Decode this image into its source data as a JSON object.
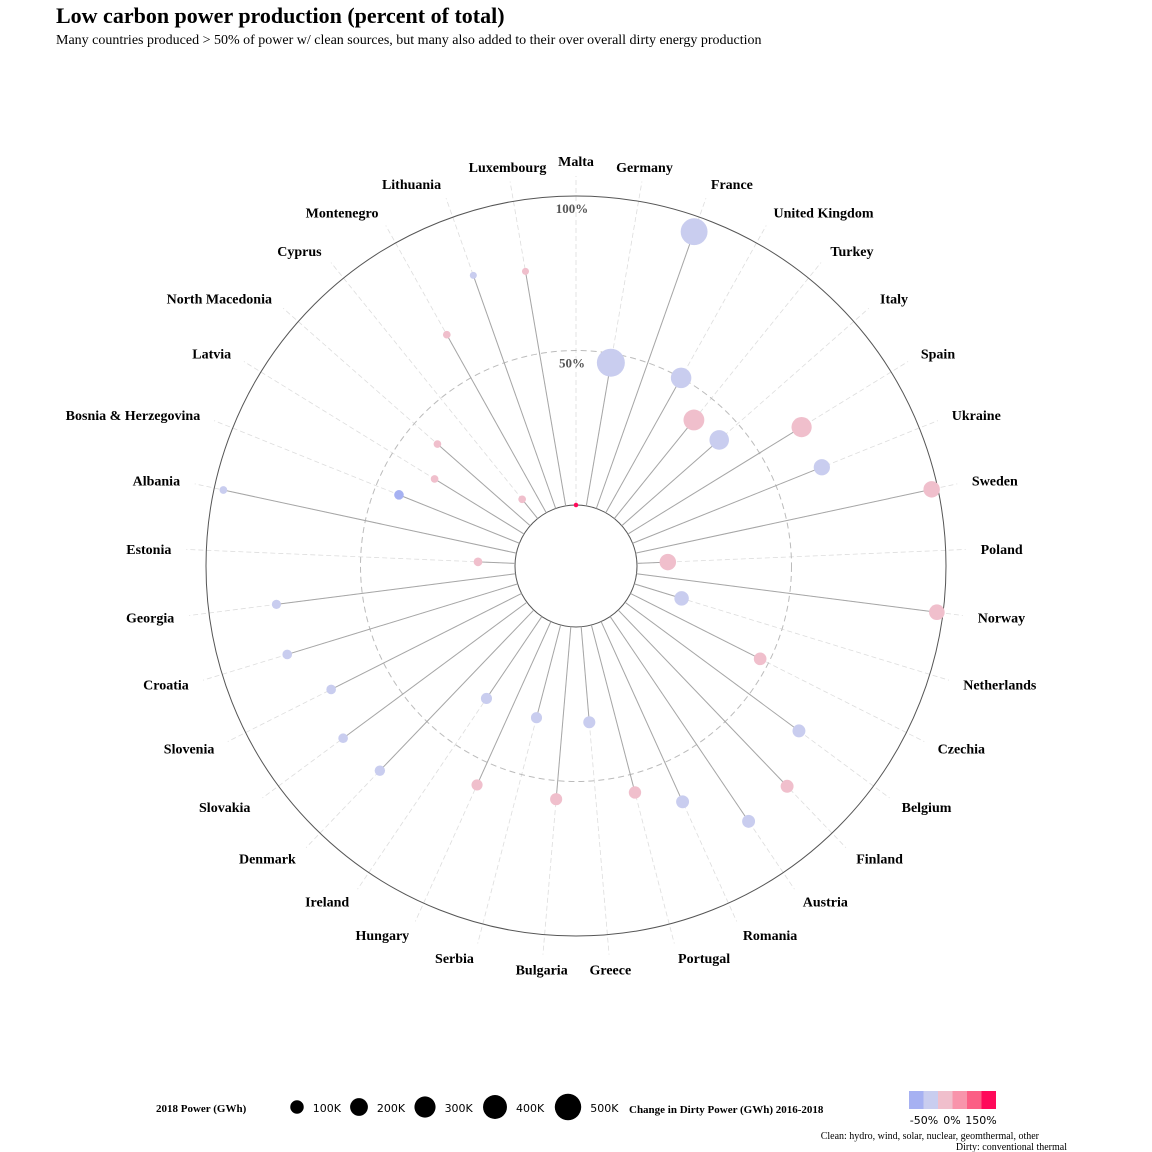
{
  "title": "Low carbon power production (percent of total)",
  "subtitle": "Many countries produced > 50% of power w/ clean sources, but many also added to their over overall dirty energy production",
  "caption": [
    "Clean: hydro, wind, solar, nuclear, geomthermal, other",
    "Dirty: conventional thermal"
  ],
  "colors": {
    "decrease_strong": "#a6b1f2",
    "decrease": "#c9cdef",
    "increase": "#f0bfcc",
    "increase_mid": "#f894ab",
    "increase_strong": "#fb5f85",
    "increase_max": "#ff0a5a",
    "spoke": "#a6a6a6",
    "grid": "#dddddd"
  },
  "chart_data": {
    "type": "polar-lollipop",
    "r_scale": "percent of total",
    "rlim": [
      0,
      100
    ],
    "ring_labels": [
      "100%",
      "50%"
    ],
    "ring_values": [
      100,
      50
    ],
    "size_legend": {
      "title": "2018 Power (GWh)",
      "values": [
        100000,
        200000,
        300000,
        400000,
        500000
      ],
      "labels": [
        "100K",
        "200K",
        "300K",
        "400K",
        "500K"
      ]
    },
    "color_legend": {
      "title": "Change in Dirty Power (GWh) 2016-2018",
      "labels": [
        "-50%",
        "0%",
        "150%"
      ]
    },
    "points": [
      {
        "country": "Malta",
        "clean_pct": 0,
        "power_gwh": 2000,
        "color": "increase_max"
      },
      {
        "country": "Germany",
        "clean_pct": 47,
        "power_gwh": 570000,
        "color": "decrease"
      },
      {
        "country": "France",
        "clean_pct": 95,
        "power_gwh": 520000,
        "color": "decrease"
      },
      {
        "country": "United Kingdom",
        "clean_pct": 50,
        "power_gwh": 280000,
        "color": "decrease"
      },
      {
        "country": "Turkey",
        "clean_pct": 41,
        "power_gwh": 290000,
        "color": "increase"
      },
      {
        "country": "Italy",
        "clean_pct": 42,
        "power_gwh": 250000,
        "color": "decrease"
      },
      {
        "country": "Spain",
        "clean_pct": 66,
        "power_gwh": 270000,
        "color": "increase"
      },
      {
        "country": "Ukraine",
        "clean_pct": 66,
        "power_gwh": 160000,
        "color": "decrease"
      },
      {
        "country": "Sweden",
        "clean_pct": 98,
        "power_gwh": 165000,
        "color": "increase"
      },
      {
        "country": "Poland",
        "clean_pct": 10,
        "power_gwh": 165000,
        "color": "increase"
      },
      {
        "country": "Norway",
        "clean_pct": 98,
        "power_gwh": 145000,
        "color": "increase"
      },
      {
        "country": "Netherlands",
        "clean_pct": 16,
        "power_gwh": 120000,
        "color": "decrease"
      },
      {
        "country": "Czechia",
        "clean_pct": 47,
        "power_gwh": 85000,
        "color": "increase"
      },
      {
        "country": "Belgium",
        "clean_pct": 70,
        "power_gwh": 90000,
        "color": "decrease"
      },
      {
        "country": "Finland",
        "clean_pct": 79,
        "power_gwh": 90000,
        "color": "increase"
      },
      {
        "country": "Austria",
        "clean_pct": 80,
        "power_gwh": 90000,
        "color": "decrease"
      },
      {
        "country": "Romania",
        "clean_pct": 64,
        "power_gwh": 90000,
        "color": "decrease"
      },
      {
        "country": "Portugal",
        "clean_pct": 56,
        "power_gwh": 80000,
        "color": "increase"
      },
      {
        "country": "Greece",
        "clean_pct": 31,
        "power_gwh": 75000,
        "color": "decrease"
      },
      {
        "country": "Bulgaria",
        "clean_pct": 56,
        "power_gwh": 75000,
        "color": "increase"
      },
      {
        "country": "Serbia",
        "clean_pct": 31,
        "power_gwh": 60000,
        "color": "decrease"
      },
      {
        "country": "Hungary",
        "clean_pct": 58,
        "power_gwh": 60000,
        "color": "increase"
      },
      {
        "country": "Ireland",
        "clean_pct": 32,
        "power_gwh": 60000,
        "color": "decrease"
      },
      {
        "country": "Denmark",
        "clean_pct": 72,
        "power_gwh": 50000,
        "color": "decrease"
      },
      {
        "country": "Slovakia",
        "clean_pct": 74,
        "power_gwh": 40000,
        "color": "decrease"
      },
      {
        "country": "Slovenia",
        "clean_pct": 69,
        "power_gwh": 40000,
        "color": "decrease"
      },
      {
        "country": "Croatia",
        "clean_pct": 78,
        "power_gwh": 40000,
        "color": "decrease"
      },
      {
        "country": "Georgia",
        "clean_pct": 78,
        "power_gwh": 35000,
        "color": "decrease"
      },
      {
        "country": "Estonia",
        "clean_pct": 12,
        "power_gwh": 30000,
        "color": "increase"
      },
      {
        "country": "Albania",
        "clean_pct": 97,
        "power_gwh": 20000,
        "color": "decrease"
      },
      {
        "country": "Bosnia & Herzegovina",
        "clean_pct": 42,
        "power_gwh": 40000,
        "color": "decrease_strong"
      },
      {
        "country": "Latvia",
        "clean_pct": 34,
        "power_gwh": 20000,
        "color": "increase"
      },
      {
        "country": "North Macedonia",
        "clean_pct": 40,
        "power_gwh": 20000,
        "color": "increase"
      },
      {
        "country": "Cyprus",
        "clean_pct": 8,
        "power_gwh": 20000,
        "color": "increase"
      },
      {
        "country": "Montenegro",
        "clean_pct": 66,
        "power_gwh": 20000,
        "color": "increase"
      },
      {
        "country": "Lithuania",
        "clean_pct": 80,
        "power_gwh": 15000,
        "color": "decrease"
      },
      {
        "country": "Luxembourg",
        "clean_pct": 77,
        "power_gwh": 15000,
        "color": "increase"
      }
    ]
  }
}
